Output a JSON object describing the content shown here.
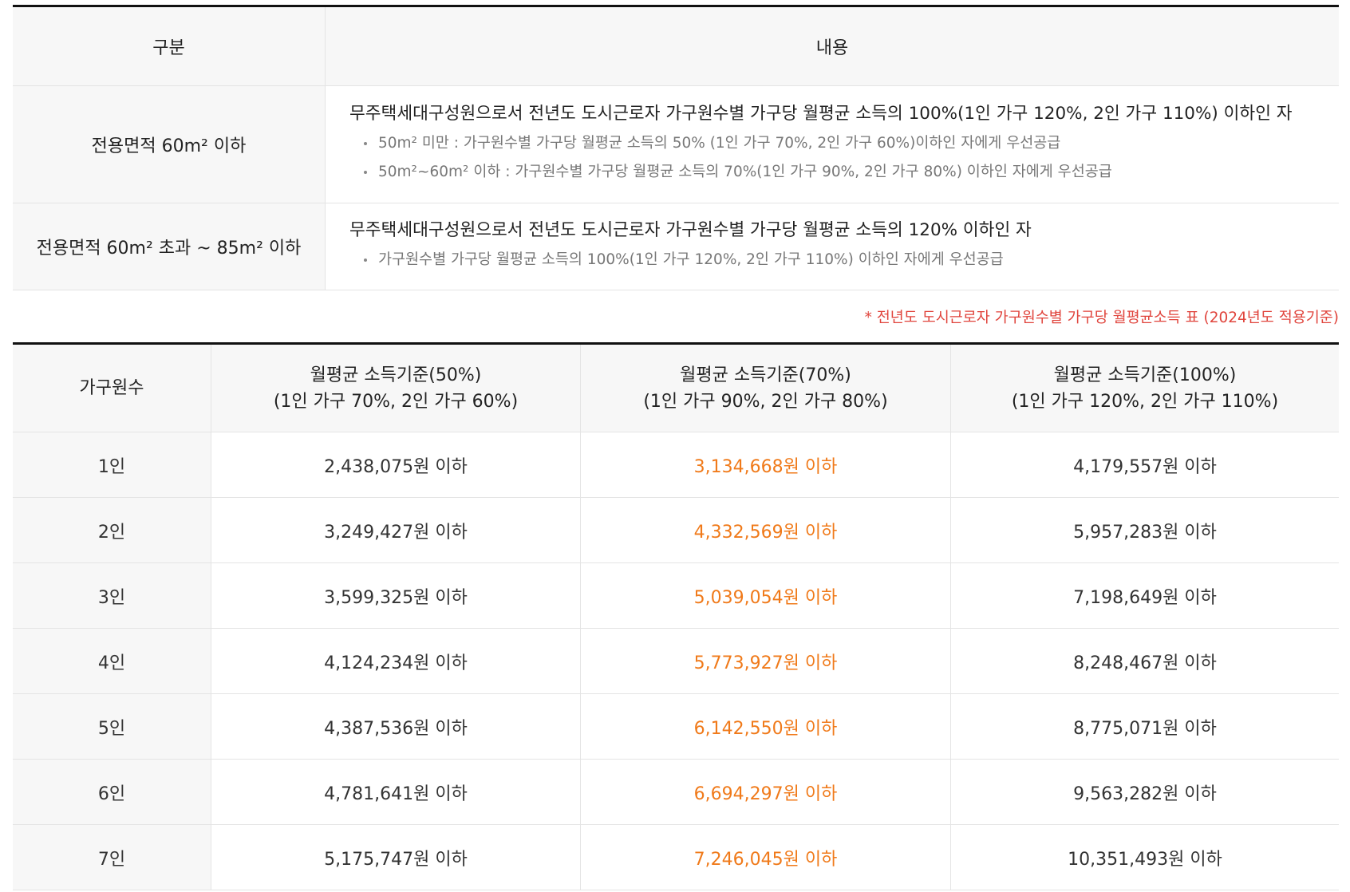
{
  "criteria": {
    "header": {
      "col1": "구분",
      "col2": "내용"
    },
    "rows": [
      {
        "label": "전용면적 60m² 이하",
        "main": "무주택세대구성원으로서 전년도 도시근로자 가구원수별 가구당 월평균 소득의 100%(1인 가구 120%, 2인 가구 110%) 이하인 자",
        "bullets": [
          "50m² 미만 : 가구원수별 가구당 월평균 소득의 50% (1인 가구 70%, 2인 가구 60%)이하인 자에게 우선공급",
          "50m²~60m² 이하 : 가구원수별 가구당 월평균 소득의 70%(1인 가구 90%, 2인 가구 80%) 이하인 자에게 우선공급"
        ]
      },
      {
        "label": "전용면적 60m² 초과 ~ 85m² 이하",
        "main": "무주택세대구성원으로서 전년도 도시근로자 가구원수별 가구당 월평균 소득의 120% 이하인 자",
        "bullets": [
          "가구원수별 가구당 월평균 소득의 100%(1인 가구 120%, 2인 가구 110%) 이하인 자에게 우선공급"
        ]
      }
    ]
  },
  "note": "* 전년도 도시근로자 가구원수별 가구당 월평균소득 표 (2024년도 적용기준)",
  "income_table": {
    "header": {
      "household": "가구원수",
      "c50": {
        "line1": "월평균 소득기준(50%)",
        "line2": "(1인 가구 70%, 2인 가구 60%)"
      },
      "c70": {
        "line1": "월평균 소득기준(70%)",
        "line2": "(1인 가구 90%, 2인 가구 80%)"
      },
      "c100": {
        "line1": "월평균 소득기준(100%)",
        "line2": "(1인 가구 120%, 2인 가구 110%)"
      }
    },
    "rows": [
      {
        "n": "1인",
        "v50": "2,438,075원 이하",
        "v70": "3,134,668원 이하",
        "v100": "4,179,557원 이하"
      },
      {
        "n": "2인",
        "v50": "3,249,427원 이하",
        "v70": "4,332,569원 이하",
        "v100": "5,957,283원 이하"
      },
      {
        "n": "3인",
        "v50": "3,599,325원 이하",
        "v70": "5,039,054원 이하",
        "v100": "7,198,649원 이하"
      },
      {
        "n": "4인",
        "v50": "4,124,234원 이하",
        "v70": "5,773,927원 이하",
        "v100": "8,248,467원 이하"
      },
      {
        "n": "5인",
        "v50": "4,387,536원 이하",
        "v70": "6,142,550원 이하",
        "v100": "8,775,071원 이하"
      },
      {
        "n": "6인",
        "v50": "4,781,641원 이하",
        "v70": "6,694,297원 이하",
        "v100": "9,563,282원 이하"
      },
      {
        "n": "7인",
        "v50": "5,175,747원 이하",
        "v70": "7,246,045원 이하",
        "v100": "10,351,493원 이하"
      }
    ]
  },
  "colors": {
    "highlight": "#f07a1a",
    "note": "#e0443c",
    "header_bg": "#f7f7f7"
  }
}
